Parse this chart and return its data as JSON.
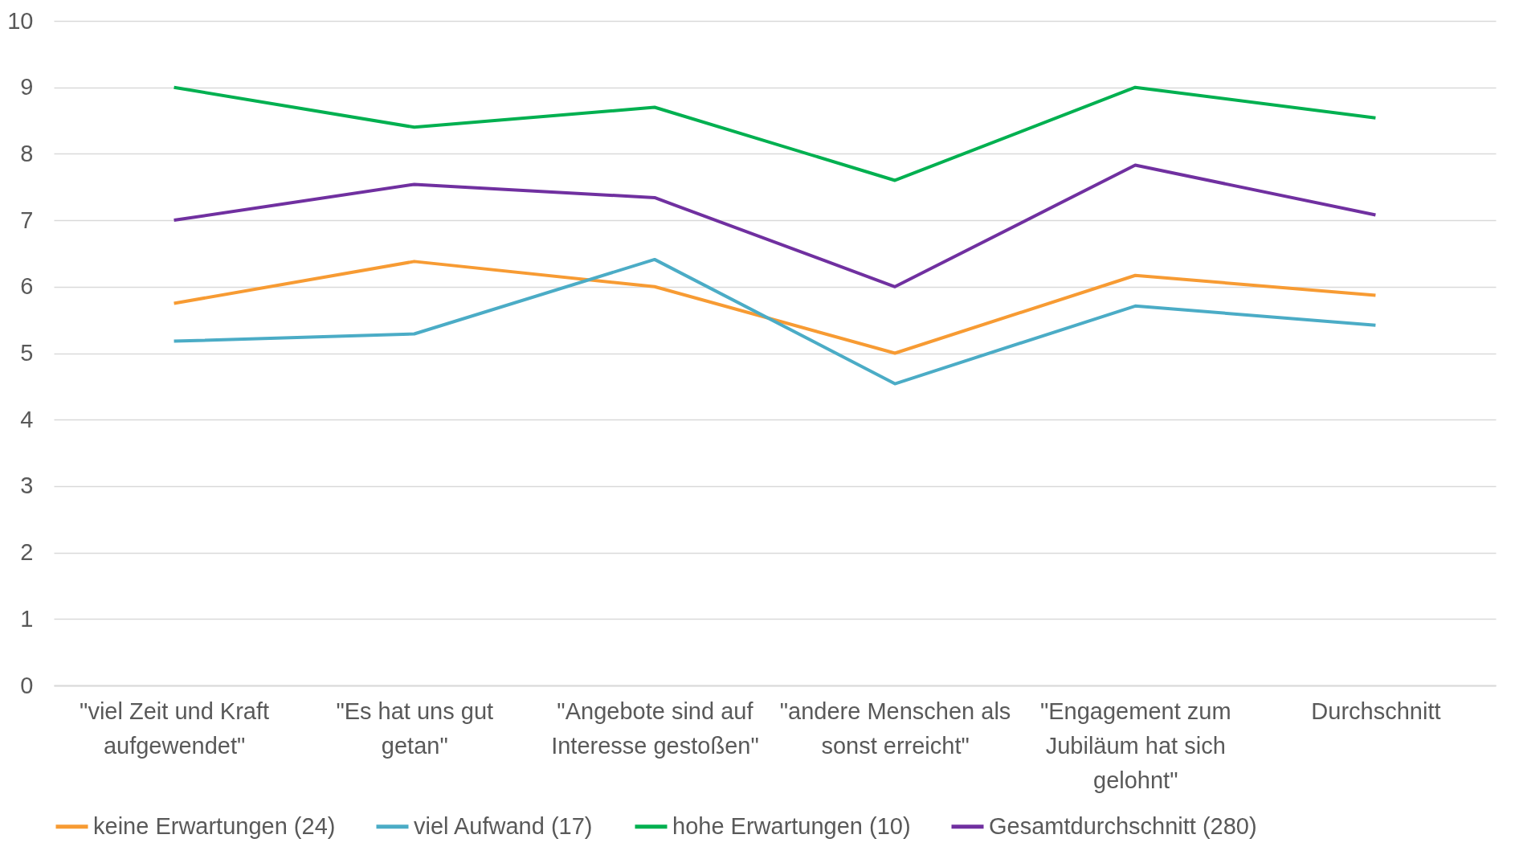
{
  "chart_data": {
    "type": "line",
    "categories": [
      "\"viel Zeit und Kraft aufgewendet\"",
      "\"Es hat uns gut getan\"",
      "\"Angebote sind auf Interesse gestoßen\"",
      "\"andere Menschen als sonst erreicht\"",
      "\"Engagement zum Jubiläum hat sich gelohnt\"",
      "Durchschnitt"
    ],
    "series": [
      {
        "name": "keine Erwartungen (24)",
        "color": "#f79b33",
        "values": [
          5.75,
          6.38,
          6.0,
          5.0,
          6.17,
          5.87
        ]
      },
      {
        "name": "viel Aufwand (17)",
        "color": "#4bacc6",
        "values": [
          5.18,
          5.29,
          6.41,
          4.54,
          5.71,
          5.42
        ]
      },
      {
        "name": "hohe Erwartungen (10)",
        "color": "#00b050",
        "values": [
          9.0,
          8.4,
          8.7,
          7.6,
          9.0,
          8.54
        ]
      },
      {
        "name": "Gesamtdurchschnitt (280)",
        "color": "#7030a0",
        "values": [
          7.0,
          7.54,
          7.34,
          6.0,
          7.83,
          7.08
        ]
      }
    ],
    "ylim": [
      0,
      10
    ],
    "yticks": [
      0,
      1,
      2,
      3,
      4,
      5,
      6,
      7,
      8,
      9,
      10
    ],
    "grid": "y",
    "legend": "bottom",
    "marker": "none",
    "line_style": "solid"
  }
}
